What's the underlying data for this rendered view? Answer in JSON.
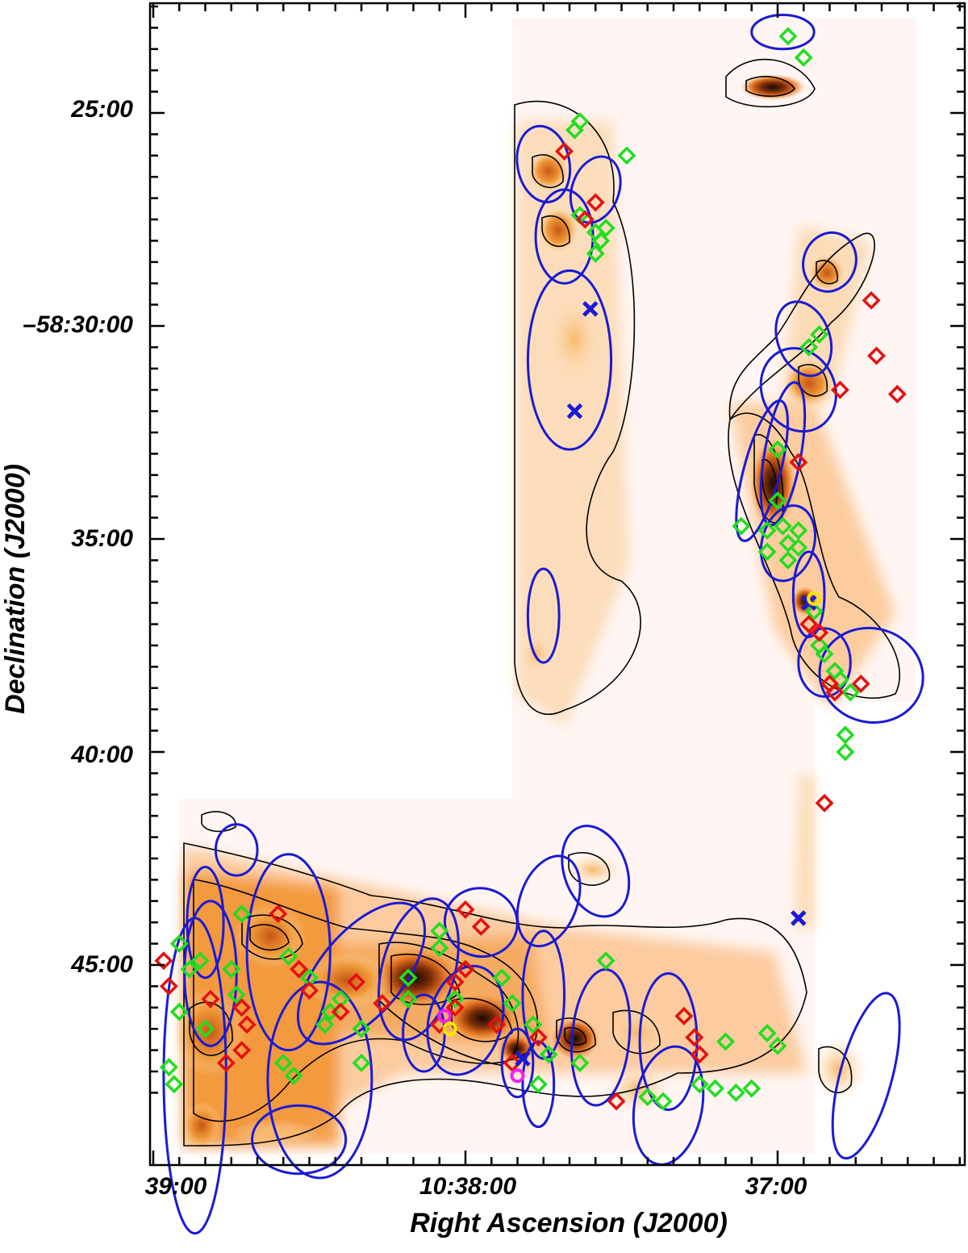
{
  "chart_data": {
    "type": "scatter",
    "title": "",
    "xlabel": "Right Ascension (J2000)",
    "ylabel": "Declination (J2000)",
    "x_unit": "RA time seconds offset from 10:39:00 (decreasing to the right)",
    "xlim": [
      0,
      180
    ],
    "ylim_arcmin": [
      -22.6,
      -48.0
    ],
    "x_ticks": [
      {
        "value": 0,
        "label": "39:00"
      },
      {
        "value": 60,
        "label": "10:38:00"
      },
      {
        "value": 120,
        "label": "37:00"
      }
    ],
    "y_ticks": [
      {
        "value": -25,
        "label": "25:00"
      },
      {
        "value": -30,
        "label": "–58:30:00"
      },
      {
        "value": -35,
        "label": "35:00"
      },
      {
        "value": -40,
        "label": "40:00"
      },
      {
        "value": -45,
        "label": "45:00"
      }
    ],
    "colors": {
      "green_diamond": "#22dd22",
      "red_diamond": "#e41010",
      "blue": "#1a1ad6",
      "magenta": "#ee22ee",
      "yellow": "#ffe400",
      "contour": "#000000"
    },
    "series": [
      {
        "marker": "diamond",
        "color": "green",
        "points": [
          [
            122,
            -23.2
          ],
          [
            125,
            -23.7
          ],
          [
            81,
            -25.4
          ],
          [
            82,
            -25.2
          ],
          [
            91,
            -26.0
          ],
          [
            82,
            -27.4
          ],
          [
            85,
            -27.8
          ],
          [
            86,
            -28.0
          ],
          [
            87,
            -27.7
          ],
          [
            85,
            -28.3
          ],
          [
            128,
            -30.2
          ],
          [
            126,
            -30.5
          ],
          [
            120,
            -32.9
          ],
          [
            120,
            -34.1
          ],
          [
            113,
            -34.7
          ],
          [
            118,
            -34.8
          ],
          [
            121,
            -34.7
          ],
          [
            124,
            -34.8
          ],
          [
            118,
            -35.3
          ],
          [
            122,
            -35.1
          ],
          [
            124,
            -35.2
          ],
          [
            122,
            -35.5
          ],
          [
            127,
            -36.7
          ],
          [
            128,
            -37.5
          ],
          [
            129,
            -37.7
          ],
          [
            131,
            -38.1
          ],
          [
            132,
            -38.3
          ],
          [
            134,
            -38.6
          ],
          [
            133,
            -39.6
          ],
          [
            133,
            -40.0
          ],
          [
            5,
            -44.5
          ],
          [
            7,
            -45.1
          ],
          [
            9,
            -44.9
          ],
          [
            17,
            -43.8
          ],
          [
            15,
            -45.1
          ],
          [
            16,
            -45.7
          ],
          [
            5,
            -46.1
          ],
          [
            10,
            -46.5
          ],
          [
            3,
            -47.4
          ],
          [
            4,
            -47.8
          ],
          [
            26,
            -44.8
          ],
          [
            30,
            -45.3
          ],
          [
            25,
            -47.3
          ],
          [
            27,
            -47.6
          ],
          [
            34,
            -46.1
          ],
          [
            36,
            -45.8
          ],
          [
            33,
            -46.4
          ],
          [
            40,
            -46.5
          ],
          [
            40,
            -47.3
          ],
          [
            49,
            -45.3
          ],
          [
            49,
            -45.8
          ],
          [
            55,
            -44.2
          ],
          [
            55,
            -44.6
          ],
          [
            58,
            -45.8
          ],
          [
            67,
            -45.3
          ],
          [
            69,
            -45.9
          ],
          [
            73,
            -46.4
          ],
          [
            76,
            -47.1
          ],
          [
            74,
            -47.8
          ],
          [
            87,
            -44.9
          ],
          [
            82,
            -47.3
          ],
          [
            95,
            -48.1
          ],
          [
            98,
            -48.2
          ],
          [
            102,
            -46.2
          ],
          [
            104,
            -46.7
          ],
          [
            105,
            -47.8
          ],
          [
            110,
            -46.8
          ],
          [
            108,
            -47.9
          ],
          [
            112,
            -48.0
          ],
          [
            115,
            -47.9
          ],
          [
            118,
            -46.6
          ],
          [
            120,
            -46.9
          ]
        ]
      },
      {
        "marker": "diamond",
        "color": "red",
        "points": [
          [
            79,
            -25.9
          ],
          [
            85,
            -27.1
          ],
          [
            83,
            -27.5
          ],
          [
            138,
            -29.4
          ],
          [
            139,
            -30.7
          ],
          [
            132,
            -31.5
          ],
          [
            143,
            -31.6
          ],
          [
            124,
            -33.2
          ],
          [
            126,
            -37.0
          ],
          [
            128,
            -37.2
          ],
          [
            130,
            -38.4
          ],
          [
            131,
            -38.6
          ],
          [
            136,
            -38.4
          ],
          [
            129,
            -41.2
          ],
          [
            2,
            -44.9
          ],
          [
            3,
            -45.5
          ],
          [
            11,
            -45.8
          ],
          [
            17,
            -46.0
          ],
          [
            18,
            -46.4
          ],
          [
            24,
            -43.8
          ],
          [
            28,
            -45.1
          ],
          [
            30,
            -45.6
          ],
          [
            36,
            -46.1
          ],
          [
            14,
            -47.3
          ],
          [
            17,
            -47.0
          ],
          [
            39,
            -45.4
          ],
          [
            44,
            -45.9
          ],
          [
            60,
            -43.7
          ],
          [
            63,
            -44.1
          ],
          [
            60,
            -45.1
          ],
          [
            58,
            -45.4
          ],
          [
            58,
            -46.0
          ],
          [
            55,
            -46.4
          ],
          [
            66,
            -46.4
          ],
          [
            69,
            -47.3
          ],
          [
            74,
            -46.7
          ],
          [
            102,
            -46.2
          ],
          [
            104,
            -46.7
          ],
          [
            105,
            -47.1
          ],
          [
            89,
            -48.2
          ]
        ]
      },
      {
        "marker": "x",
        "color": "blue",
        "points": [
          [
            84,
            -29.6
          ],
          [
            81,
            -32.0
          ],
          [
            126,
            -36.5
          ],
          [
            124,
            -43.9
          ],
          [
            71,
            -47.2
          ]
        ]
      },
      {
        "marker": "circle",
        "color": "magenta",
        "points": [
          [
            56,
            -46.2
          ],
          [
            70,
            -47.6
          ]
        ]
      },
      {
        "marker": "circle",
        "color": "yellow",
        "points": [
          [
            57,
            -46.5
          ],
          [
            127,
            -36.4
          ]
        ]
      }
    ],
    "ellipses": [
      {
        "x": 75,
        "y": -26.2,
        "rx": 5,
        "ry": 0.9,
        "angle": -10
      },
      {
        "x": 85,
        "y": -26.8,
        "rx": 4.5,
        "ry": 0.8,
        "angle": 20
      },
      {
        "x": 79,
        "y": -27.9,
        "rx": 5.5,
        "ry": 1.1,
        "angle": 0
      },
      {
        "x": 80,
        "y": -30.8,
        "rx": 8,
        "ry": 2.1,
        "angle": 0
      },
      {
        "x": 75,
        "y": -36.8,
        "rx": 3,
        "ry": 1.1,
        "angle": 0
      },
      {
        "x": 121,
        "y": -23.1,
        "rx": 6,
        "ry": 0.4,
        "angle": 0
      },
      {
        "x": 130,
        "y": -28.5,
        "rx": 5,
        "ry": 0.7,
        "angle": 20
      },
      {
        "x": 125,
        "y": -30.3,
        "rx": 5,
        "ry": 0.9,
        "angle": -20
      },
      {
        "x": 124,
        "y": -31.5,
        "rx": 7,
        "ry": 1.0,
        "angle": -25
      },
      {
        "x": 117,
        "y": -33.4,
        "rx": 3.5,
        "ry": 1.7,
        "angle": 15
      },
      {
        "x": 121,
        "y": -33.0,
        "rx": 3.5,
        "ry": 1.7,
        "angle": 10
      },
      {
        "x": 122,
        "y": -35.1,
        "rx": 5,
        "ry": 0.9,
        "angle": 15
      },
      {
        "x": 126,
        "y": -36.3,
        "rx": 3,
        "ry": 1.0,
        "angle": 0
      },
      {
        "x": 138,
        "y": -38.2,
        "rx": 10,
        "ry": 1.1,
        "angle": 15
      },
      {
        "x": 129,
        "y": -37.9,
        "rx": 5,
        "ry": 0.8,
        "angle": 0
      },
      {
        "x": 16,
        "y": -42.3,
        "rx": 4,
        "ry": 0.6,
        "angle": 0
      },
      {
        "x": 10,
        "y": -44.0,
        "rx": 3.5,
        "ry": 1.3,
        "angle": 0
      },
      {
        "x": 11,
        "y": -45.2,
        "rx": 5,
        "ry": 1.7,
        "angle": 0
      },
      {
        "x": 26,
        "y": -44.7,
        "rx": 8,
        "ry": 2.3,
        "angle": 0
      },
      {
        "x": 40,
        "y": -45.2,
        "rx": 8,
        "ry": 2.0,
        "angle": 40
      },
      {
        "x": 32,
        "y": -47.7,
        "rx": 10,
        "ry": 2.3,
        "angle": 0
      },
      {
        "x": 28,
        "y": -49.1,
        "rx": 9,
        "ry": 0.8,
        "angle": 0
      },
      {
        "x": 8,
        "y": -47.6,
        "rx": 6,
        "ry": 3.7,
        "angle": 0
      },
      {
        "x": 51,
        "y": -45.1,
        "rx": 7,
        "ry": 1.7,
        "angle": 15
      },
      {
        "x": 52,
        "y": -46.6,
        "rx": 4,
        "ry": 0.9,
        "angle": 0
      },
      {
        "x": 60,
        "y": -46.3,
        "rx": 7,
        "ry": 1.3,
        "angle": 15
      },
      {
        "x": 63,
        "y": -44.0,
        "rx": 7,
        "ry": 0.8,
        "angle": 15
      },
      {
        "x": 70,
        "y": -47.3,
        "rx": 3,
        "ry": 0.8,
        "angle": 0
      },
      {
        "x": 74,
        "y": -47.8,
        "rx": 3,
        "ry": 1.0,
        "angle": 0
      },
      {
        "x": 75,
        "y": -45.7,
        "rx": 4,
        "ry": 1.5,
        "angle": 0
      },
      {
        "x": 76,
        "y": -43.5,
        "rx": 5.5,
        "ry": 1.1,
        "angle": 20
      },
      {
        "x": 85,
        "y": -42.8,
        "rx": 6,
        "ry": 1.1,
        "angle": -20
      },
      {
        "x": 86,
        "y": -46.7,
        "rx": 5.5,
        "ry": 1.6,
        "angle": 5
      },
      {
        "x": 99,
        "y": -46.8,
        "rx": 5.5,
        "ry": 1.6,
        "angle": 0
      },
      {
        "x": 99,
        "y": -48.3,
        "rx": 6.5,
        "ry": 1.4,
        "angle": 10
      },
      {
        "x": 137,
        "y": -47.6,
        "rx": 5,
        "ry": 2.0,
        "angle": 15
      }
    ]
  }
}
